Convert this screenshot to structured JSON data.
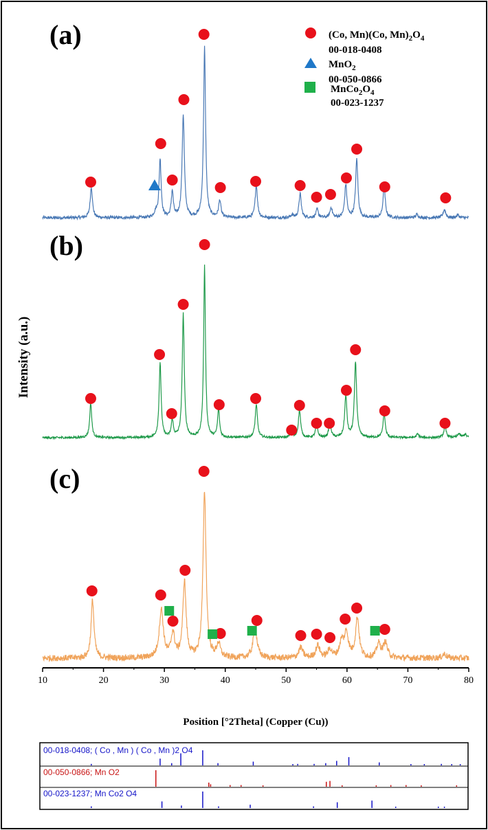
{
  "chart_data": {
    "type": "line",
    "xlabel": "Position [°2Theta] (Copper (Cu))",
    "ylabel": "Intensity (a.u.)",
    "xlim": [
      10,
      80
    ],
    "x_ticks": [
      10,
      20,
      30,
      40,
      50,
      60,
      70,
      80
    ],
    "grid": false,
    "legend_position": "top-right",
    "colors": {
      "a": "#4a79b5",
      "b": "#1f9a4a",
      "c": "#f0a35a",
      "spinel_marker": "#e8111b",
      "mno2_marker": "#1f78c8",
      "mnco2o4_marker": "#1fb04a",
      "ref_blue": "#1414c8",
      "ref_red": "#c81414"
    },
    "legend": [
      {
        "marker": "circle",
        "label": "(Co, Mn)(Co, Mn)",
        "sub": "2",
        "tail": "O",
        "sub2": "4",
        "code": "00-018-0408"
      },
      {
        "marker": "triangle",
        "label": "MnO",
        "sub": "2",
        "tail": "",
        "sub2": "",
        "code": "00-050-0866"
      },
      {
        "marker": "square",
        "label": "MnCo",
        "sub": "2",
        "tail": "O",
        "sub2": "4",
        "code": "00-023-1237"
      }
    ],
    "panels": [
      {
        "label": "(a)",
        "baseline": 5,
        "peaks": [
          {
            "x": 18.0,
            "h": 45,
            "w": 0.22
          },
          {
            "x": 28.6,
            "h": 8,
            "w": 0.3
          },
          {
            "x": 29.3,
            "h": 85,
            "w": 0.2
          },
          {
            "x": 31.3,
            "h": 38,
            "w": 0.2
          },
          {
            "x": 33.1,
            "h": 150,
            "w": 0.22
          },
          {
            "x": 36.6,
            "h": 248,
            "w": 0.2
          },
          {
            "x": 39.1,
            "h": 25,
            "w": 0.22
          },
          {
            "x": 45.1,
            "h": 48,
            "w": 0.22
          },
          {
            "x": 51.0,
            "h": 4,
            "w": 0.25
          },
          {
            "x": 52.3,
            "h": 35,
            "w": 0.22
          },
          {
            "x": 55.1,
            "h": 12,
            "w": 0.22
          },
          {
            "x": 57.4,
            "h": 15,
            "w": 0.22
          },
          {
            "x": 59.8,
            "h": 48,
            "w": 0.22
          },
          {
            "x": 61.6,
            "h": 85,
            "w": 0.22
          },
          {
            "x": 66.1,
            "h": 45,
            "w": 0.22
          },
          {
            "x": 71.5,
            "h": 5,
            "w": 0.25
          },
          {
            "x": 76.0,
            "h": 12,
            "w": 0.25
          },
          {
            "x": 78.2,
            "h": 4,
            "w": 0.25
          }
        ],
        "circle_markers": [
          {
            "x": 17.9,
            "y": 57
          },
          {
            "x": 29.4,
            "y": 113
          },
          {
            "x": 31.3,
            "y": 60
          },
          {
            "x": 33.2,
            "y": 177
          },
          {
            "x": 36.5,
            "y": 272
          },
          {
            "x": 39.2,
            "y": 49
          },
          {
            "x": 45.0,
            "y": 58
          },
          {
            "x": 52.3,
            "y": 52
          },
          {
            "x": 55.0,
            "y": 35
          },
          {
            "x": 57.3,
            "y": 39
          },
          {
            "x": 59.9,
            "y": 63
          },
          {
            "x": 61.6,
            "y": 105
          },
          {
            "x": 66.2,
            "y": 50
          },
          {
            "x": 76.2,
            "y": 34
          }
        ],
        "triangle_markers": [
          {
            "x": 28.4,
            "y": 52
          }
        ],
        "square_markers": []
      },
      {
        "label": "(b)",
        "baseline": 5,
        "peaks": [
          {
            "x": 17.9,
            "h": 50,
            "w": 0.2
          },
          {
            "x": 29.3,
            "h": 108,
            "w": 0.2
          },
          {
            "x": 31.3,
            "h": 25,
            "w": 0.2
          },
          {
            "x": 33.1,
            "h": 180,
            "w": 0.2
          },
          {
            "x": 36.6,
            "h": 250,
            "w": 0.18
          },
          {
            "x": 38.9,
            "h": 40,
            "w": 0.2
          },
          {
            "x": 45.1,
            "h": 48,
            "w": 0.22
          },
          {
            "x": 50.8,
            "h": 7,
            "w": 0.22
          },
          {
            "x": 52.2,
            "h": 40,
            "w": 0.22
          },
          {
            "x": 55.0,
            "h": 18,
            "w": 0.22
          },
          {
            "x": 57.2,
            "h": 22,
            "w": 0.22
          },
          {
            "x": 59.8,
            "h": 60,
            "w": 0.22
          },
          {
            "x": 61.4,
            "h": 110,
            "w": 0.22
          },
          {
            "x": 66.1,
            "h": 35,
            "w": 0.22
          },
          {
            "x": 71.6,
            "h": 5,
            "w": 0.25
          },
          {
            "x": 76.1,
            "h": 15,
            "w": 0.25
          },
          {
            "x": 78.4,
            "h": 6,
            "w": 0.25
          },
          {
            "x": 79.4,
            "h": 5,
            "w": 0.25
          }
        ],
        "circle_markers": [
          {
            "x": 17.9,
            "y": 62
          },
          {
            "x": 29.2,
            "y": 126
          },
          {
            "x": 31.2,
            "y": 40
          },
          {
            "x": 33.1,
            "y": 199
          },
          {
            "x": 36.6,
            "y": 286
          },
          {
            "x": 39.0,
            "y": 53
          },
          {
            "x": 45.0,
            "y": 62
          },
          {
            "x": 50.9,
            "y": 16
          },
          {
            "x": 52.2,
            "y": 52
          },
          {
            "x": 55.0,
            "y": 26
          },
          {
            "x": 57.1,
            "y": 26
          },
          {
            "x": 59.9,
            "y": 74
          },
          {
            "x": 61.4,
            "y": 133
          },
          {
            "x": 66.2,
            "y": 44
          },
          {
            "x": 76.1,
            "y": 26
          }
        ],
        "triangle_markers": [],
        "square_markers": []
      },
      {
        "label": "(c)",
        "baseline": 8,
        "peaks": [
          {
            "x": 18.2,
            "h": 85,
            "w": 0.28
          },
          {
            "x": 29.5,
            "h": 70,
            "w": 0.4
          },
          {
            "x": 31.4,
            "h": 35,
            "w": 0.35
          },
          {
            "x": 33.3,
            "h": 110,
            "w": 0.32
          },
          {
            "x": 36.6,
            "h": 242,
            "w": 0.3
          },
          {
            "x": 38.9,
            "h": 20,
            "w": 0.35
          },
          {
            "x": 44.9,
            "h": 42,
            "w": 0.4
          },
          {
            "x": 52.4,
            "h": 15,
            "w": 0.4
          },
          {
            "x": 55.2,
            "h": 18,
            "w": 0.4
          },
          {
            "x": 57.2,
            "h": 12,
            "w": 0.4
          },
          {
            "x": 59.1,
            "h": 22,
            "w": 0.4
          },
          {
            "x": 59.9,
            "h": 35,
            "w": 0.4
          },
          {
            "x": 61.7,
            "h": 58,
            "w": 0.35
          },
          {
            "x": 65.2,
            "h": 20,
            "w": 0.4
          },
          {
            "x": 66.3,
            "h": 22,
            "w": 0.4
          },
          {
            "x": 76.0,
            "h": 6,
            "w": 0.4
          }
        ],
        "circle_markers": [
          {
            "x": 18.1,
            "y": 106
          },
          {
            "x": 29.4,
            "y": 100
          },
          {
            "x": 31.4,
            "y": 62
          },
          {
            "x": 33.4,
            "y": 136
          },
          {
            "x": 36.5,
            "y": 280
          },
          {
            "x": 39.2,
            "y": 44
          },
          {
            "x": 45.2,
            "y": 63
          },
          {
            "x": 52.4,
            "y": 41
          },
          {
            "x": 55.0,
            "y": 43
          },
          {
            "x": 57.2,
            "y": 38
          },
          {
            "x": 59.7,
            "y": 65
          },
          {
            "x": 61.6,
            "y": 81
          },
          {
            "x": 66.2,
            "y": 50
          }
        ],
        "triangle_markers": [],
        "square_markers": [
          {
            "x": 30.8,
            "y": 77
          },
          {
            "x": 37.9,
            "y": 43
          },
          {
            "x": 44.4,
            "y": 48
          },
          {
            "x": 64.6,
            "y": 48
          }
        ]
      }
    ],
    "reference_patterns": [
      {
        "label": "00-018-0408; ( Co , Mn ) ( Co , Mn )2 O4",
        "color": "#1414c8",
        "lines": [
          [
            18.0,
            0.1
          ],
          [
            29.3,
            0.45
          ],
          [
            31.2,
            0.15
          ],
          [
            32.7,
            0.8
          ],
          [
            36.3,
            1.0
          ],
          [
            38.8,
            0.15
          ],
          [
            44.6,
            0.25
          ],
          [
            51.1,
            0.05
          ],
          [
            51.9,
            0.1
          ],
          [
            54.6,
            0.1
          ],
          [
            56.5,
            0.15
          ],
          [
            58.3,
            0.3
          ],
          [
            60.3,
            0.55
          ],
          [
            65.3,
            0.2
          ],
          [
            70.5,
            0.05
          ],
          [
            72.7,
            0.05
          ],
          [
            75.5,
            0.1
          ],
          [
            77.2,
            0.05
          ],
          [
            78.6,
            0.05
          ]
        ]
      },
      {
        "label": "00-050-0866; Mn O2",
        "color": "#c81414",
        "lines": [
          [
            28.6,
            1.0
          ],
          [
            37.3,
            0.25
          ],
          [
            37.6,
            0.15
          ],
          [
            40.8,
            0.1
          ],
          [
            42.6,
            0.1
          ],
          [
            46.2,
            0.05
          ],
          [
            56.6,
            0.3
          ],
          [
            57.2,
            0.35
          ],
          [
            59.2,
            0.05
          ],
          [
            64.8,
            0.05
          ],
          [
            67.2,
            0.1
          ],
          [
            69.7,
            0.1
          ],
          [
            72.2,
            0.05
          ],
          [
            78.0,
            0.05
          ]
        ]
      },
      {
        "label": "00-023-1237; Mn Co2 O4",
        "color": "#1414c8",
        "lines": [
          [
            18.0,
            0.1
          ],
          [
            29.6,
            0.4
          ],
          [
            32.8,
            0.15
          ],
          [
            36.3,
            1.0
          ],
          [
            38.9,
            0.1
          ],
          [
            44.1,
            0.2
          ],
          [
            54.5,
            0.1
          ],
          [
            58.4,
            0.35
          ],
          [
            64.1,
            0.45
          ],
          [
            68.0,
            0.05
          ],
          [
            75.0,
            0.05
          ],
          [
            76.0,
            0.05
          ]
        ]
      }
    ]
  }
}
